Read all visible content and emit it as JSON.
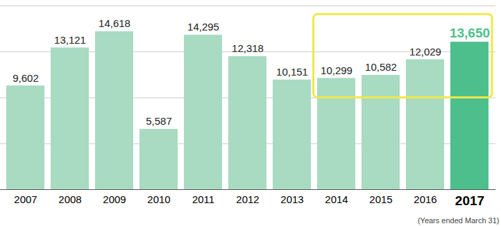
{
  "chart_data": {
    "type": "bar",
    "categories": [
      "2007",
      "2008",
      "2009",
      "2010",
      "2011",
      "2012",
      "2013",
      "2014",
      "2015",
      "2016",
      "2017"
    ],
    "values": [
      9602,
      13121,
      14618,
      5587,
      14295,
      12318,
      10151,
      10299,
      10582,
      12029,
      13650
    ],
    "value_labels": [
      "9,602",
      "13,121",
      "14,618",
      "5,587",
      "14,295",
      "12,318",
      "10,151",
      "10,299",
      "10,582",
      "12,029",
      "13,650"
    ],
    "colors": [
      "#a8dbc2",
      "#a8dbc2",
      "#a8dbc2",
      "#a8dbc2",
      "#a8dbc2",
      "#a8dbc2",
      "#a8dbc2",
      "#a8dbc2",
      "#a8dbc2",
      "#a8dbc2",
      "#4cbf8c"
    ],
    "xlabel": "(Years ended March 31)",
    "ylim": [
      0,
      17000
    ],
    "yticks": [
      0,
      4250,
      8500,
      12750,
      17000
    ],
    "grid": true,
    "data_labels": true,
    "tick_labels": "x"
  }
}
